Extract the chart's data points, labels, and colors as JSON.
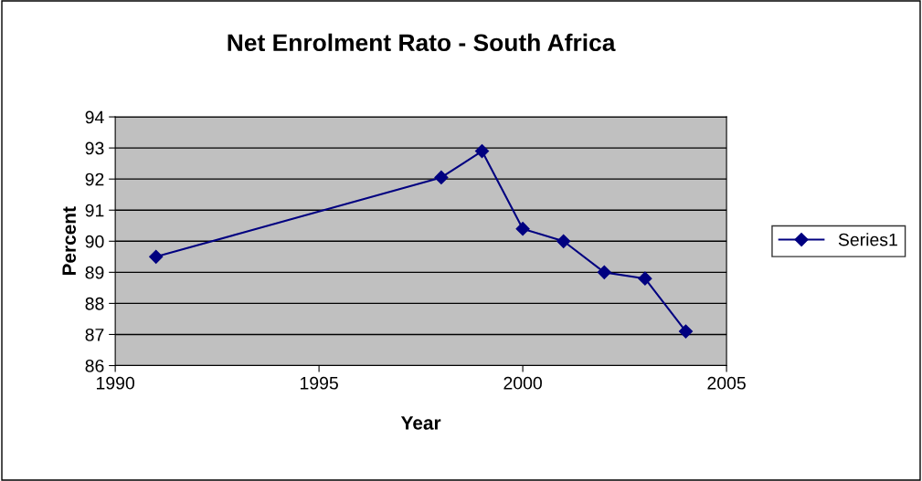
{
  "chart_data": {
    "type": "line",
    "title": "Net Enrolment Rato - South Africa",
    "xlabel": "Year",
    "ylabel": "Percent",
    "series": [
      {
        "name": "Series1",
        "color": "#000080",
        "x": [
          1991,
          1998,
          1999,
          2000,
          2001,
          2002,
          2003,
          2004
        ],
        "values": [
          89.5,
          92.05,
          92.9,
          90.4,
          90.0,
          89.0,
          88.8,
          87.1
        ]
      }
    ],
    "xlim": [
      1990,
      2005
    ],
    "xticks": [
      1990,
      1995,
      2000,
      2005
    ],
    "ylim": [
      86,
      94
    ],
    "yticks": [
      86,
      87,
      88,
      89,
      90,
      91,
      92,
      93,
      94
    ],
    "grid": "y",
    "legend": "right",
    "marker": "diamond",
    "line_style": "solid"
  }
}
